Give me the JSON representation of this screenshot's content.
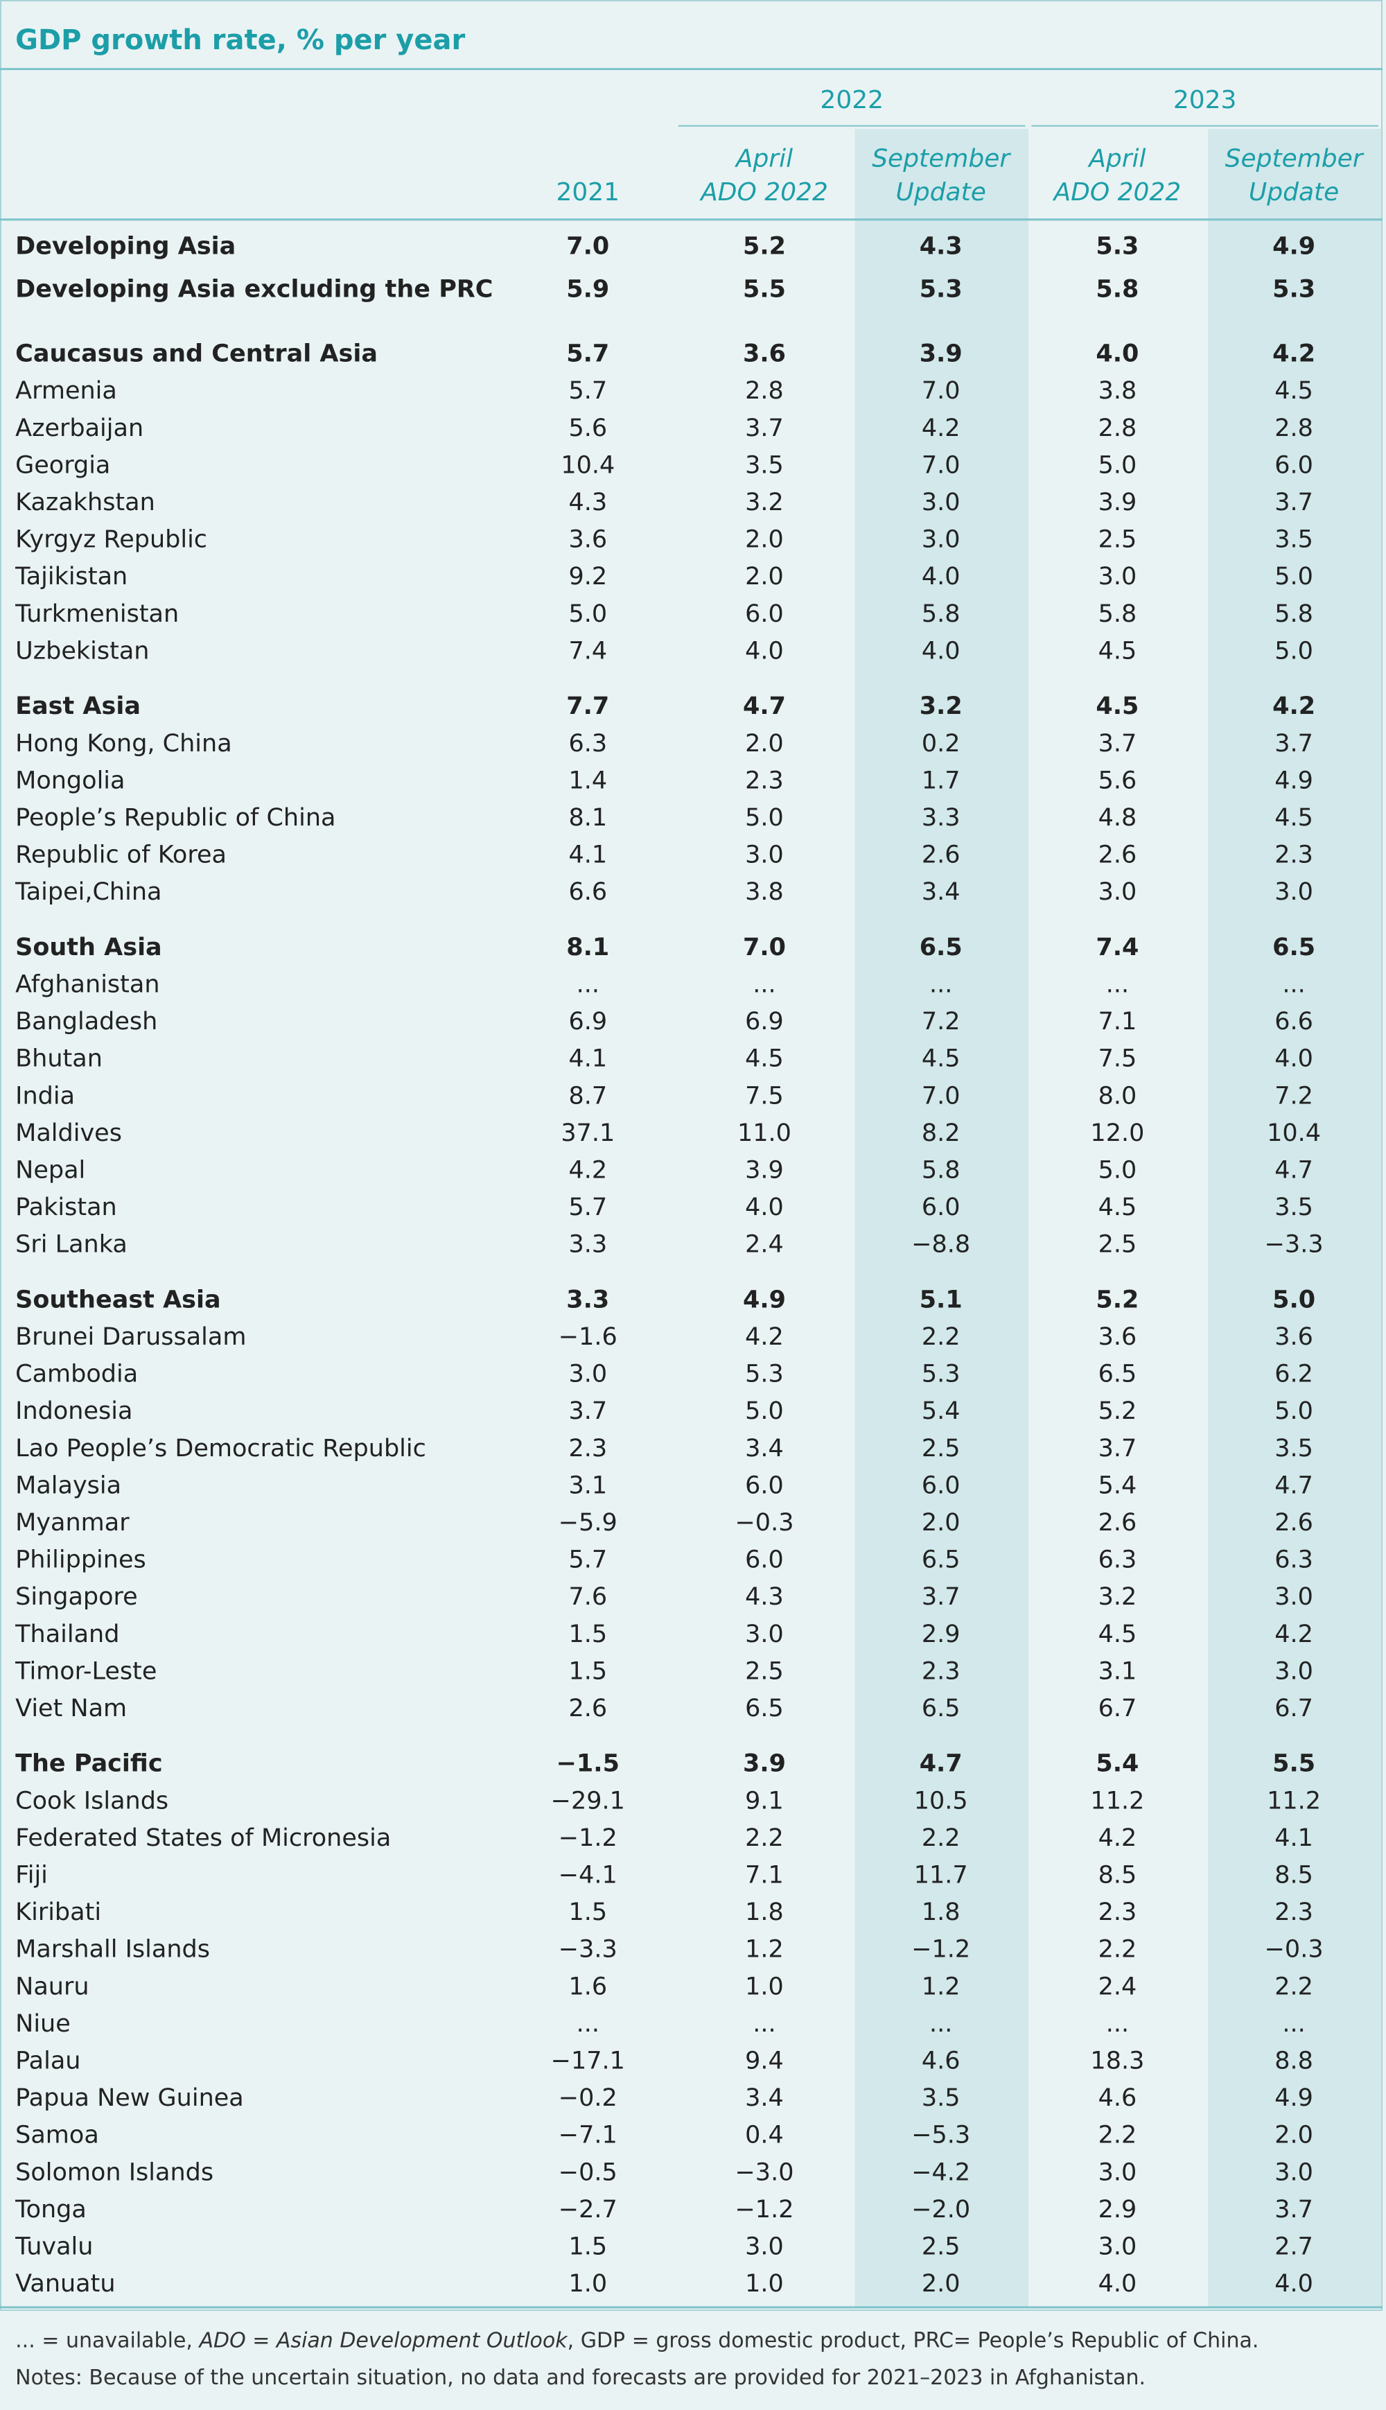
{
  "title": "GDP growth rate, % per year",
  "table": {
    "year_headers": [
      "2022",
      "2023"
    ],
    "columns": [
      [
        "2021"
      ],
      [
        "April",
        "ADO 2022"
      ],
      [
        "September",
        "Update"
      ],
      [
        "April",
        "ADO 2022"
      ],
      [
        "September",
        "Update"
      ]
    ],
    "groups": [
      {
        "totals": [
          [
            "Developing Asia",
            "7.0",
            "5.2",
            "4.3",
            "5.3",
            "4.9"
          ],
          [
            "Developing Asia excluding the PRC",
            "5.9",
            "5.5",
            "5.3",
            "5.8",
            "5.3"
          ]
        ],
        "rows": []
      },
      {
        "totals": [
          [
            "Caucasus and Central Asia",
            "5.7",
            "3.6",
            "3.9",
            "4.0",
            "4.2"
          ]
        ],
        "rows": [
          [
            "Armenia",
            "5.7",
            "2.8",
            "7.0",
            "3.8",
            "4.5"
          ],
          [
            "Azerbaijan",
            "5.6",
            "3.7",
            "4.2",
            "2.8",
            "2.8"
          ],
          [
            "Georgia",
            "10.4",
            "3.5",
            "7.0",
            "5.0",
            "6.0"
          ],
          [
            "Kazakhstan",
            "4.3",
            "3.2",
            "3.0",
            "3.9",
            "3.7"
          ],
          [
            "Kyrgyz Republic",
            "3.6",
            "2.0",
            "3.0",
            "2.5",
            "3.5"
          ],
          [
            "Tajikistan",
            "9.2",
            "2.0",
            "4.0",
            "3.0",
            "5.0"
          ],
          [
            "Turkmenistan",
            "5.0",
            "6.0",
            "5.8",
            "5.8",
            "5.8"
          ],
          [
            "Uzbekistan",
            "7.4",
            "4.0",
            "4.0",
            "4.5",
            "5.0"
          ]
        ]
      },
      {
        "totals": [
          [
            "East Asia",
            "7.7",
            "4.7",
            "3.2",
            "4.5",
            "4.2"
          ]
        ],
        "rows": [
          [
            "Hong Kong, China",
            "6.3",
            "2.0",
            "0.2",
            "3.7",
            "3.7"
          ],
          [
            "Mongolia",
            "1.4",
            "2.3",
            "1.7",
            "5.6",
            "4.9"
          ],
          [
            "People’s Republic of China",
            "8.1",
            "5.0",
            "3.3",
            "4.8",
            "4.5"
          ],
          [
            "Republic of Korea",
            "4.1",
            "3.0",
            "2.6",
            "2.6",
            "2.3"
          ],
          [
            "Taipei,China",
            "6.6",
            "3.8",
            "3.4",
            "3.0",
            "3.0"
          ]
        ]
      },
      {
        "totals": [
          [
            "South Asia",
            "8.1",
            "7.0",
            "6.5",
            "7.4",
            "6.5"
          ]
        ],
        "rows": [
          [
            "Afghanistan",
            "...",
            "...",
            "...",
            "...",
            "..."
          ],
          [
            "Bangladesh",
            "6.9",
            "6.9",
            "7.2",
            "7.1",
            "6.6"
          ],
          [
            "Bhutan",
            "4.1",
            "4.5",
            "4.5",
            "7.5",
            "4.0"
          ],
          [
            "India",
            "8.7",
            "7.5",
            "7.0",
            "8.0",
            "7.2"
          ],
          [
            "Maldives",
            "37.1",
            "11.0",
            "8.2",
            "12.0",
            "10.4"
          ],
          [
            "Nepal",
            "4.2",
            "3.9",
            "5.8",
            "5.0",
            "4.7"
          ],
          [
            "Pakistan",
            "5.7",
            "4.0",
            "6.0",
            "4.5",
            "3.5"
          ],
          [
            "Sri Lanka",
            "3.3",
            "2.4",
            "−8.8",
            "2.5",
            "−3.3"
          ]
        ]
      },
      {
        "totals": [
          [
            "Southeast Asia",
            "3.3",
            "4.9",
            "5.1",
            "5.2",
            "5.0"
          ]
        ],
        "rows": [
          [
            "Brunei Darussalam",
            "−1.6",
            "4.2",
            "2.2",
            "3.6",
            "3.6"
          ],
          [
            "Cambodia",
            "3.0",
            "5.3",
            "5.3",
            "6.5",
            "6.2"
          ],
          [
            "Indonesia",
            "3.7",
            "5.0",
            "5.4",
            "5.2",
            "5.0"
          ],
          [
            "Lao People’s Democratic Republic",
            "2.3",
            "3.4",
            "2.5",
            "3.7",
            "3.5"
          ],
          [
            "Malaysia",
            "3.1",
            "6.0",
            "6.0",
            "5.4",
            "4.7"
          ],
          [
            "Myanmar",
            "−5.9",
            "−0.3",
            "2.0",
            "2.6",
            "2.6"
          ],
          [
            "Philippines",
            "5.7",
            "6.0",
            "6.5",
            "6.3",
            "6.3"
          ],
          [
            "Singapore",
            "7.6",
            "4.3",
            "3.7",
            "3.2",
            "3.0"
          ],
          [
            "Thailand",
            "1.5",
            "3.0",
            "2.9",
            "4.5",
            "4.2"
          ],
          [
            "Timor-Leste",
            "1.5",
            "2.5",
            "2.3",
            "3.1",
            "3.0"
          ],
          [
            "Viet Nam",
            "2.6",
            "6.5",
            "6.5",
            "6.7",
            "6.7"
          ]
        ]
      },
      {
        "totals": [
          [
            "The Pacific",
            "−1.5",
            "3.9",
            "4.7",
            "5.4",
            "5.5"
          ]
        ],
        "rows": [
          [
            "Cook Islands",
            "−29.1",
            "9.1",
            "10.5",
            "11.2",
            "11.2"
          ],
          [
            "Federated States of Micronesia",
            "−1.2",
            "2.2",
            "2.2",
            "4.2",
            "4.1"
          ],
          [
            "Fiji",
            "−4.1",
            "7.1",
            "11.7",
            "8.5",
            "8.5"
          ],
          [
            "Kiribati",
            "1.5",
            "1.8",
            "1.8",
            "2.3",
            "2.3"
          ],
          [
            "Marshall Islands",
            "−3.3",
            "1.2",
            "−1.2",
            "2.2",
            "−0.3"
          ],
          [
            "Nauru",
            "1.6",
            "1.0",
            "1.2",
            "2.4",
            "2.2"
          ],
          [
            "Niue",
            "...",
            "...",
            "...",
            "...",
            "..."
          ],
          [
            "Palau",
            "−17.1",
            "9.4",
            "4.6",
            "18.3",
            "8.8"
          ],
          [
            "Papua New Guinea",
            "−0.2",
            "3.4",
            "3.5",
            "4.6",
            "4.9"
          ],
          [
            "Samoa",
            "−7.1",
            "0.4",
            "−5.3",
            "2.2",
            "2.0"
          ],
          [
            "Solomon Islands",
            "−0.5",
            "−3.0",
            "−4.2",
            "3.0",
            "3.0"
          ],
          [
            "Tonga",
            "−2.7",
            "−1.2",
            "−2.0",
            "2.9",
            "3.7"
          ],
          [
            "Tuvalu",
            "1.5",
            "3.0",
            "2.5",
            "3.0",
            "2.7"
          ],
          [
            "Vanuatu",
            "1.0",
            "1.0",
            "2.0",
            "4.0",
            "4.0"
          ]
        ]
      }
    ]
  },
  "notes": [
    [
      "... = unavailable, ",
      "ADO = Asian Development Outlook",
      ", GDP = gross domestic product, PRC= People’s Republic of China."
    ],
    [
      "Notes: Because of the uncertain situation, no data and forecasts are provided for 2021–2023 in Afghanistan."
    ]
  ]
}
